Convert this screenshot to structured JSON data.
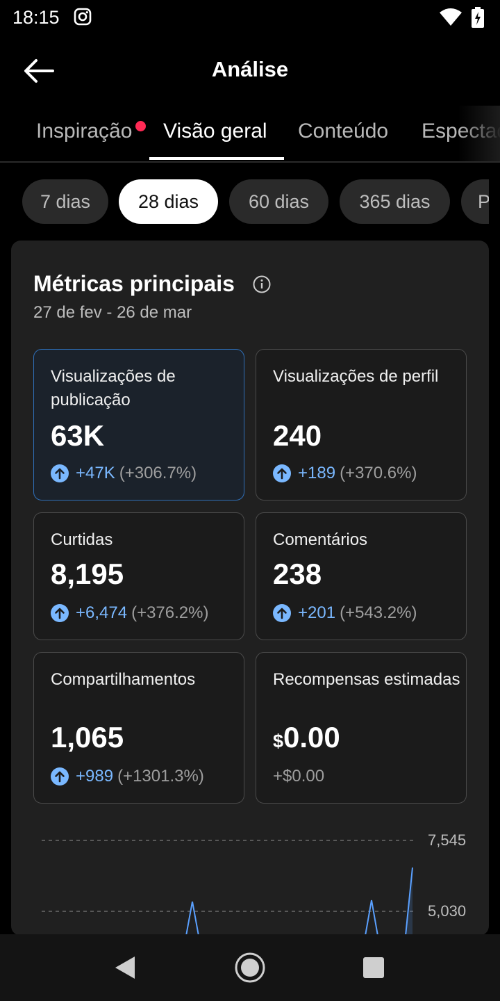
{
  "status_bar": {
    "time": "18:15",
    "icons": [
      "instagram-icon",
      "wifi-icon",
      "battery-charging-icon"
    ]
  },
  "header": {
    "title": "Análise",
    "back_icon": "arrow-left-icon"
  },
  "tabs": [
    {
      "label": "Inspiração",
      "active": false,
      "notification_dot": true
    },
    {
      "label": "Visão geral",
      "active": true
    },
    {
      "label": "Conteúdo",
      "active": false
    },
    {
      "label": "Espectadores",
      "active": false
    }
  ],
  "periods": [
    {
      "label": "7 dias",
      "active": false
    },
    {
      "label": "28 dias",
      "active": true
    },
    {
      "label": "60 dias",
      "active": false
    },
    {
      "label": "365 dias",
      "active": false
    },
    {
      "label": "Personalizado",
      "active": false
    }
  ],
  "metrics_card": {
    "title": "Métricas principais",
    "date_range": "27 de fev - 26 de mar",
    "metrics": [
      {
        "label": "Visualizações de publicação",
        "value": "63K",
        "change_abs": "+47K",
        "change_pct": "(+306.7%)",
        "selected": true
      },
      {
        "label": "Visualizações de perfil",
        "value": "240",
        "change_abs": "+189",
        "change_pct": "(+370.6%)",
        "selected": false
      },
      {
        "label": "Curtidas",
        "value": "8,195",
        "change_abs": "+6,474",
        "change_pct": "(+376.2%)",
        "selected": false
      },
      {
        "label": "Comentários",
        "value": "238",
        "change_abs": "+201",
        "change_pct": "(+543.2%)",
        "selected": false
      },
      {
        "label": "Compartilhamentos",
        "value": "1,065",
        "change_abs": "+989",
        "change_pct": "(+1301.3%)",
        "selected": false
      },
      {
        "label": "Recompensas estimadas",
        "currency": "$",
        "value": "0.00",
        "change_plain": "+$0.00",
        "selected": false
      }
    ]
  },
  "chart_data": {
    "type": "line",
    "y_ticks": [
      "7,545",
      "5,030"
    ],
    "grid": true,
    "line_color": "#5aa0ff"
  },
  "colors": {
    "accent_blue": "#7ab8ff",
    "notification_red": "#ff2a55",
    "selected_border": "#2f6fb8"
  },
  "nav_bar": {
    "icons": [
      "back-triangle-icon",
      "home-circle-icon",
      "recents-square-icon"
    ]
  }
}
